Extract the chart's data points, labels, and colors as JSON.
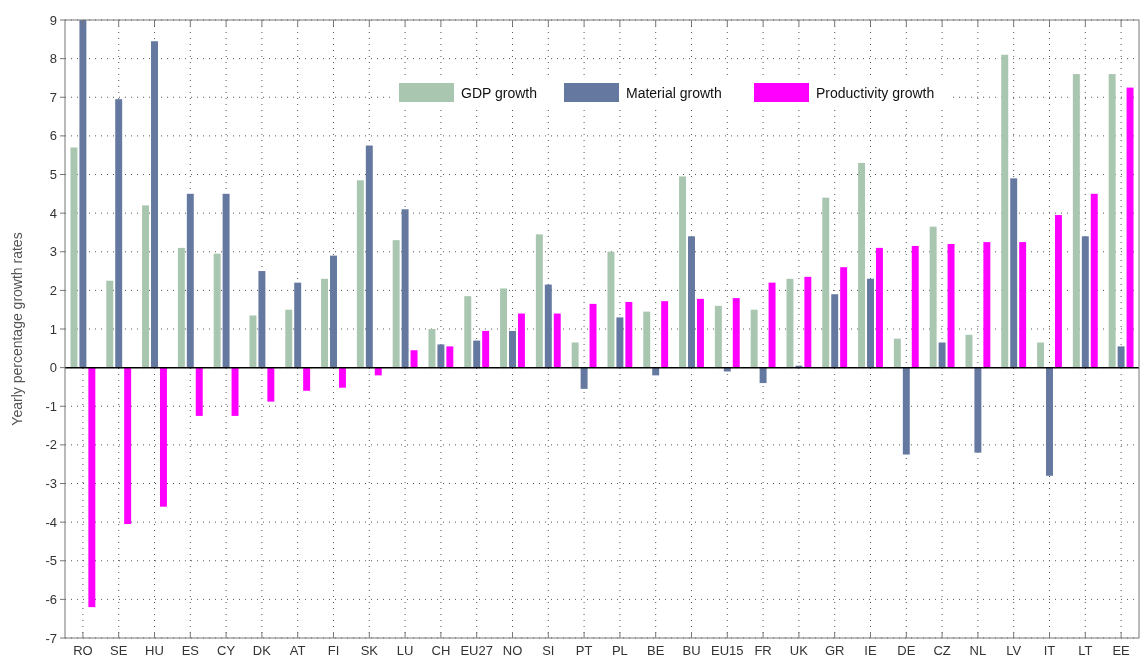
{
  "chart_data": {
    "type": "bar",
    "ylabel": "Yearly percentage growth rates",
    "categories": [
      "RO",
      "SE",
      "HU",
      "ES",
      "CY",
      "DK",
      "AT",
      "FI",
      "SK",
      "LU",
      "CH",
      "EU27",
      "NO",
      "SI",
      "PT",
      "PL",
      "BE",
      "BU",
      "EU15",
      "FR",
      "UK",
      "GR",
      "IE",
      "DE",
      "CZ",
      "NL",
      "LV",
      "IT",
      "LT",
      "EE"
    ],
    "series": [
      {
        "name": "GDP growth",
        "color": "#a9c6b0",
        "values": [
          5.7,
          2.25,
          4.2,
          3.1,
          2.95,
          1.35,
          1.5,
          2.3,
          4.85,
          3.3,
          1.0,
          1.85,
          2.05,
          3.45,
          0.65,
          3.0,
          1.45,
          4.95,
          1.6,
          1.5,
          2.3,
          4.4,
          5.3,
          0.75,
          3.65,
          0.85,
          8.1,
          0.65,
          7.6,
          7.6
        ]
      },
      {
        "name": "Material growth",
        "color": "#6478a0",
        "values": [
          9,
          6.95,
          8.45,
          4.5,
          4.5,
          2.5,
          2.2,
          2.9,
          5.75,
          4.1,
          0.6,
          0.7,
          0.95,
          2.15,
          -0.55,
          1.3,
          -0.2,
          3.4,
          -0.1,
          -0.4,
          0.05,
          1.9,
          2.3,
          -2.25,
          0.65,
          -2.2,
          4.9,
          -2.8,
          3.4,
          0.55
        ]
      },
      {
        "name": "Productivity growth",
        "color": "#ff00ff",
        "values": [
          -6.2,
          -4.05,
          -3.6,
          -1.25,
          -1.25,
          -0.88,
          -0.6,
          -0.52,
          -0.2,
          0.45,
          0.55,
          0.95,
          1.4,
          1.4,
          1.65,
          1.7,
          1.72,
          1.78,
          1.8,
          2.2,
          2.35,
          2.6,
          3.1,
          3.15,
          3.2,
          3.25,
          3.25,
          3.95,
          4.5,
          7.25
        ]
      }
    ],
    "ylim": [
      -7,
      9
    ],
    "yticks": [
      -7,
      -6,
      -5,
      -4,
      -3,
      -2,
      -1,
      0,
      1,
      2,
      3,
      4,
      5,
      6,
      7,
      8,
      9
    ],
    "grid": true,
    "legend": "top right"
  }
}
